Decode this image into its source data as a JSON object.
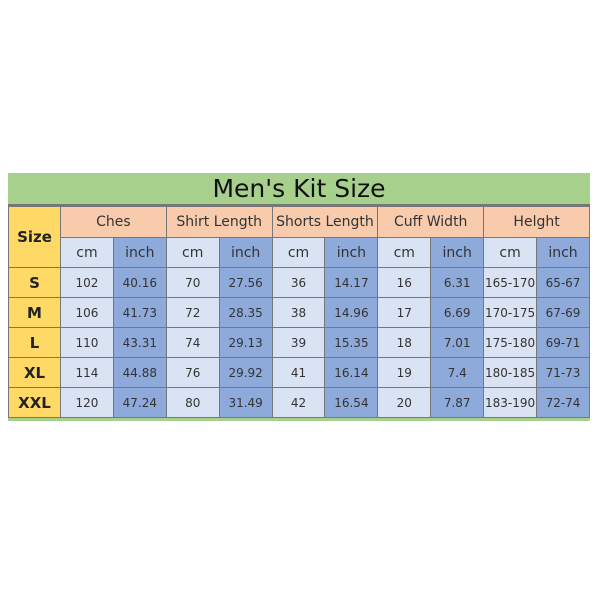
{
  "title": "Men's Kit Size",
  "size_header": "Size",
  "groups": [
    "Ches",
    "Shirt Length",
    "Shorts Length",
    "Cuff Width",
    "Helght"
  ],
  "units": [
    "cm",
    "inch"
  ],
  "rows": [
    {
      "size": "S",
      "values": [
        "102",
        "40.16",
        "70",
        "27.56",
        "36",
        "14.17",
        "16",
        "6.31",
        "165-170",
        "65-67"
      ]
    },
    {
      "size": "M",
      "values": [
        "106",
        "41.73",
        "72",
        "28.35",
        "38",
        "14.96",
        "17",
        "6.69",
        "170-175",
        "67-69"
      ]
    },
    {
      "size": "L",
      "values": [
        "110",
        "43.31",
        "74",
        "29.13",
        "39",
        "15.35",
        "18",
        "7.01",
        "175-180",
        "69-71"
      ]
    },
    {
      "size": "XL",
      "values": [
        "114",
        "44.88",
        "76",
        "29.92",
        "41",
        "16.14",
        "19",
        "7.4",
        "180-185",
        "71-73"
      ]
    },
    {
      "size": "XXL",
      "values": [
        "120",
        "47.24",
        "80",
        "31.49",
        "42",
        "16.54",
        "20",
        "7.87",
        "183-190",
        "72-74"
      ]
    }
  ],
  "colors": {
    "title_bg": "#a8d08d",
    "group_bg": "#f8cbad",
    "size_bg": "#ffd966",
    "cm_bg": "#dae3f3",
    "inch_bg": "#8eaadb"
  }
}
